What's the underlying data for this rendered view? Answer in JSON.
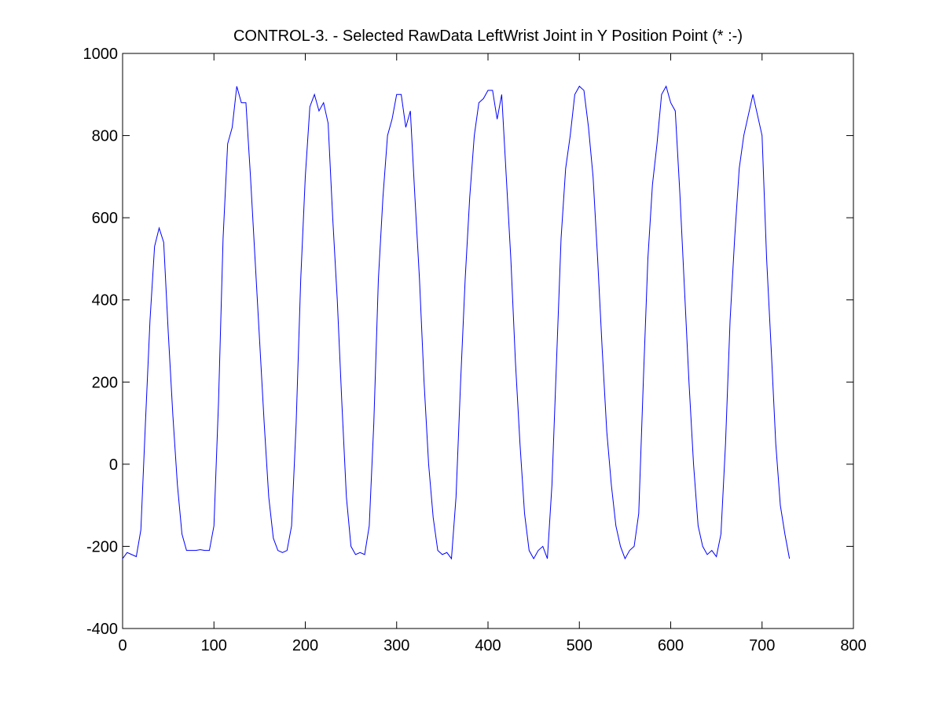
{
  "chart_data": {
    "type": "line",
    "title": "CONTROL-3. - Selected RawData LeftWrist Joint in Y Position Point (* :-)",
    "x": [
      0,
      5,
      10,
      15,
      20,
      25,
      30,
      35,
      40,
      45,
      50,
      55,
      60,
      65,
      70,
      75,
      80,
      85,
      90,
      95,
      100,
      105,
      110,
      115,
      120,
      125,
      130,
      135,
      140,
      145,
      150,
      155,
      160,
      165,
      170,
      175,
      180,
      185,
      190,
      195,
      200,
      205,
      210,
      215,
      220,
      225,
      230,
      235,
      240,
      245,
      250,
      255,
      260,
      265,
      270,
      275,
      280,
      285,
      290,
      295,
      300,
      305,
      310,
      315,
      320,
      325,
      330,
      335,
      340,
      345,
      350,
      355,
      360,
      365,
      370,
      375,
      380,
      385,
      390,
      395,
      400,
      405,
      410,
      415,
      420,
      425,
      430,
      435,
      440,
      445,
      450,
      455,
      460,
      465,
      470,
      475,
      480,
      485,
      490,
      495,
      500,
      505,
      510,
      515,
      520,
      525,
      530,
      535,
      540,
      545,
      550,
      555,
      560,
      565,
      570,
      575,
      580,
      585,
      590,
      595,
      600,
      605,
      610,
      615,
      620,
      625,
      630,
      635,
      640,
      645,
      650,
      655,
      660,
      665,
      670,
      675,
      680,
      685,
      690,
      695,
      700,
      705,
      710,
      715,
      720,
      725,
      730
    ],
    "series": [
      {
        "color": "#0000ff",
        "values": [
          -230,
          -215,
          -220,
          -225,
          -160,
          100,
          350,
          530,
          575,
          540,
          320,
          120,
          -50,
          -170,
          -210,
          -210,
          -210,
          -208,
          -210,
          -210,
          -150,
          150,
          550,
          780,
          820,
          920,
          880,
          880,
          700,
          500,
          300,
          100,
          -80,
          -180,
          -210,
          -215,
          -210,
          -150,
          100,
          450,
          700,
          870,
          900,
          860,
          880,
          830,
          600,
          400,
          150,
          -80,
          -200,
          -220,
          -215,
          -220,
          -150,
          100,
          450,
          650,
          800,
          840,
          900,
          900,
          820,
          860,
          650,
          450,
          200,
          0,
          -130,
          -210,
          -220,
          -215,
          -230,
          -80,
          200,
          450,
          650,
          800,
          880,
          890,
          910,
          910,
          840,
          900,
          700,
          500,
          250,
          50,
          -120,
          -210,
          -230,
          -210,
          -200,
          -230,
          -50,
          250,
          550,
          720,
          800,
          900,
          920,
          910,
          820,
          700,
          500,
          280,
          80,
          -50,
          -150,
          -200,
          -230,
          -210,
          -200,
          -120,
          200,
          500,
          680,
          780,
          900,
          920,
          880,
          860,
          660,
          430,
          200,
          0,
          -150,
          -200,
          -220,
          -210,
          -225,
          -170,
          50,
          350,
          550,
          720,
          800,
          850,
          900,
          850,
          800,
          500,
          280,
          50,
          -100,
          -170,
          -230
        ]
      }
    ],
    "xlim": [
      0,
      800
    ],
    "xticks": [
      0,
      100,
      200,
      300,
      400,
      500,
      600,
      700,
      800
    ],
    "ylim": [
      -400,
      1000
    ],
    "yticks": [
      -400,
      -200,
      0,
      200,
      400,
      600,
      800,
      1000
    ]
  }
}
